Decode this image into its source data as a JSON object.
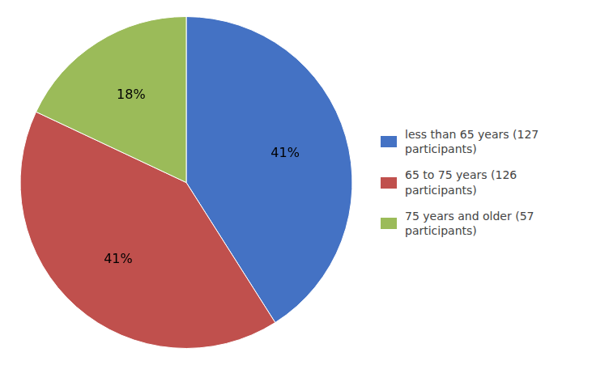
{
  "chart_data": {
    "type": "pie",
    "categories": [
      "less than 65 years (127\nparticipants)",
      "65 to 75 years (126\nparticipants)",
      "75 years and older (57\nparticipants)"
    ],
    "values": [
      41,
      41,
      18
    ],
    "value_labels": [
      "41%",
      "41%",
      "18%"
    ],
    "colors": [
      "#4472C4",
      "#C0504D",
      "#9BBB59"
    ],
    "data_labels": true,
    "legend": "right"
  }
}
